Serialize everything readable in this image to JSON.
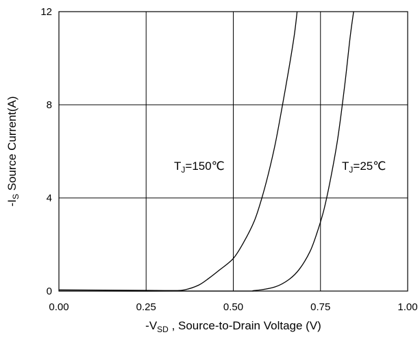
{
  "chart_data": {
    "type": "line",
    "title": "",
    "xlabel": {
      "prefix": "-V",
      "sub": "SD",
      "rest": " , Source-to-Drain Voltage (V)"
    },
    "ylabel": {
      "prefix": "-I",
      "sub": "S",
      "rest": " Source Current(A)"
    },
    "xlim": [
      0,
      1.0
    ],
    "ylim": [
      0,
      12
    ],
    "x_ticks": [
      "0.00",
      "0.25",
      "0.50",
      "0.75",
      "1.00"
    ],
    "y_ticks": [
      "0",
      "4",
      "8",
      "12"
    ],
    "grid": true,
    "series": [
      {
        "annotation": {
          "prefix": "T",
          "sub": "J",
          "rest": "=150℃"
        },
        "x": [
          0.0,
          0.25,
          0.33,
          0.36,
          0.4,
          0.43,
          0.46,
          0.5,
          0.53,
          0.56,
          0.58,
          0.6,
          0.62,
          0.64,
          0.66,
          0.675,
          0.683
        ],
        "y": [
          0.05,
          0.03,
          0.02,
          0.05,
          0.25,
          0.55,
          0.9,
          1.4,
          2.1,
          3.0,
          3.9,
          5.0,
          6.3,
          7.9,
          9.6,
          11.0,
          12.0
        ]
      },
      {
        "annotation": {
          "prefix": "T",
          "sub": "J",
          "rest": "=25℃"
        },
        "x": [
          0.0,
          0.5,
          0.56,
          0.62,
          0.66,
          0.69,
          0.72,
          0.74,
          0.76,
          0.78,
          0.8,
          0.82,
          0.835,
          0.845
        ],
        "y": [
          0.0,
          0.0,
          0.02,
          0.18,
          0.5,
          0.95,
          1.7,
          2.5,
          3.5,
          4.9,
          6.6,
          8.9,
          10.9,
          12.0
        ]
      }
    ]
  }
}
